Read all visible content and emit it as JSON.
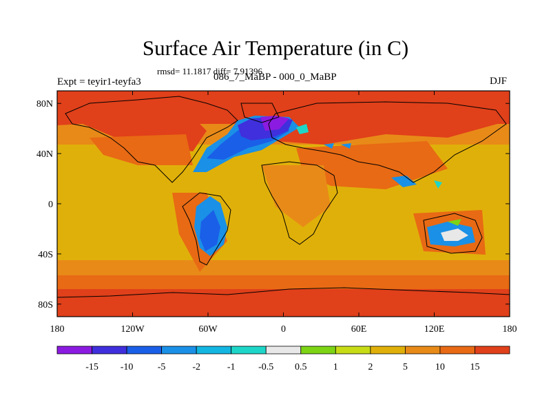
{
  "title": "Surface Air Temperature (in C)",
  "stats": "rmsd= 11.1817 diff= 7.91396",
  "left_label": "Expt = teyir1-teyfa3",
  "center_label": "086_7_MaBP - 000_0_MaBP",
  "right_label": "DJF",
  "axes": {
    "y_ticks": [
      {
        "label": "80N",
        "lat": 80
      },
      {
        "label": "40N",
        "lat": 40
      },
      {
        "label": "0",
        "lat": 0
      },
      {
        "label": "40S",
        "lat": -40
      },
      {
        "label": "80S",
        "lat": -80
      }
    ],
    "x_ticks": [
      {
        "label": "180",
        "lon": -180
      },
      {
        "label": "120W",
        "lon": -120
      },
      {
        "label": "60W",
        "lon": -60
      },
      {
        "label": "0",
        "lon": 0
      },
      {
        "label": "60E",
        "lon": 60
      },
      {
        "label": "120E",
        "lon": 120
      },
      {
        "label": "180",
        "lon": 180
      }
    ],
    "lon_range": [
      -180,
      180
    ],
    "lat_range": [
      -90,
      90
    ]
  },
  "colorbar": {
    "colors": [
      "#8b1be0",
      "#3f2fdc",
      "#1a5fe8",
      "#1a90e6",
      "#12b6e0",
      "#1dd6c8",
      "#e8e8e8",
      "#7cd414",
      "#c8dc16",
      "#e0b00a",
      "#e88a18",
      "#e86a14",
      "#e0401a"
    ],
    "labels": [
      "-15",
      "-10",
      "-5",
      "-2",
      "-1",
      "-0.5",
      "0.5",
      "1",
      "2",
      "5",
      "10",
      "15"
    ]
  },
  "map_colors": {
    "hot": "#e0401a",
    "warm": "#e86a14",
    "mid": "#e88a18",
    "temperate": "#e0b00a",
    "cool_light": "#1dd6c8",
    "cool": "#1a90e6",
    "cold": "#1a5fe8",
    "colder": "#3f2fdc",
    "coldest": "#8b1be0",
    "neutral": "#e8e8e8",
    "slight": "#7cd414"
  }
}
